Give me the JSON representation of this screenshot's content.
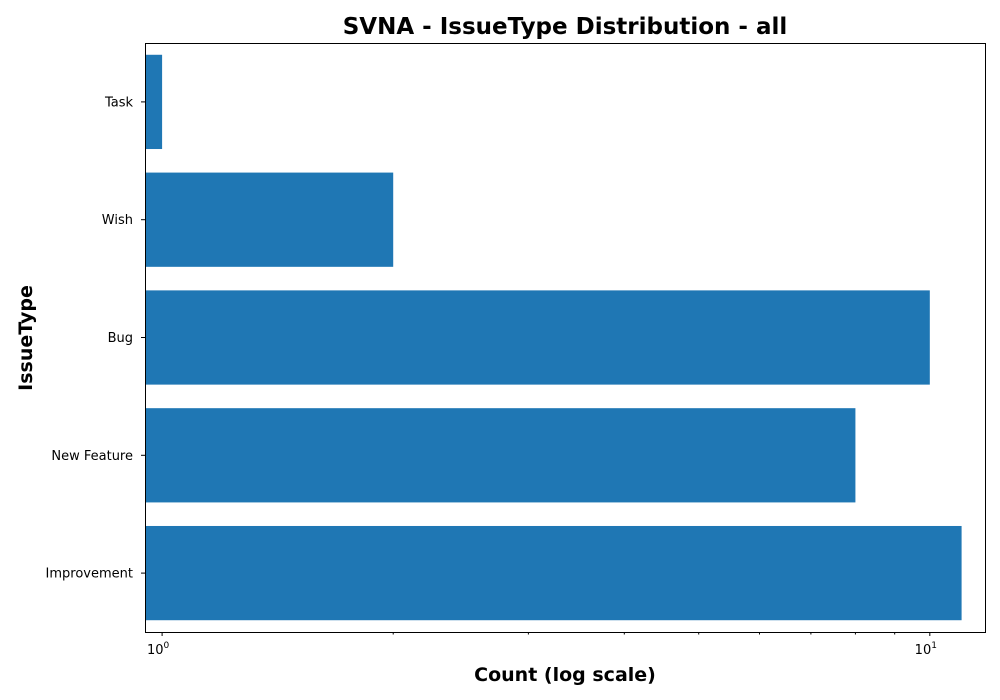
{
  "chart_data": {
    "type": "bar",
    "orientation": "horizontal",
    "title": "SVNA - IssueType Distribution - all",
    "xlabel": "Count (log scale)",
    "ylabel": "IssueType",
    "x_scale": "log",
    "xlim": [
      0.95,
      11.8
    ],
    "categories": [
      "Task",
      "Wish",
      "Bug",
      "New Feature",
      "Improvement"
    ],
    "values": [
      1,
      2,
      10,
      8,
      11
    ],
    "x_ticks": [
      {
        "value": 1,
        "base": "10",
        "exp": "0"
      },
      {
        "value": 10,
        "base": "10",
        "exp": "1"
      }
    ],
    "bar_color": "#1f77b4",
    "grid": false,
    "legend": "none"
  }
}
